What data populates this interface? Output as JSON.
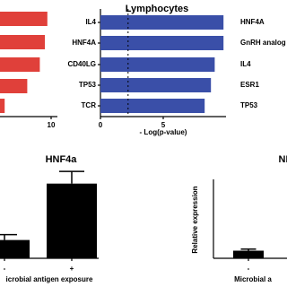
{
  "chart_data": [
    {
      "type": "hbar",
      "values": [
        9.7,
        9.5,
        9.1,
        8.1,
        6.3
      ],
      "color": "#e0403a",
      "xlim": [
        0,
        10.5
      ],
      "xticks": [
        10
      ]
    },
    {
      "type": "hbar",
      "title": "Lymphocytes",
      "x_label": "- Log(p-value)",
      "categories": [
        "IL4",
        "HNF4A",
        "CD40LG",
        "TP53",
        "TCR"
      ],
      "values": [
        9.8,
        9.8,
        9.1,
        8.8,
        8.3
      ],
      "color": "#3a4fa8",
      "xlim": [
        0,
        10
      ],
      "xticks": [
        0,
        5
      ],
      "threshold": 2.2
    },
    {
      "type": "labels",
      "categories": [
        "HNF4A",
        "GnRH analog",
        "IL4",
        "ESR1",
        "TP53"
      ]
    },
    {
      "type": "bar",
      "title": "HNF4a",
      "x_label": "icrobial antigen exposure",
      "categories": [
        "-",
        "+"
      ],
      "values": [
        1.2,
        4.9
      ],
      "errors": [
        0.35,
        0.8
      ],
      "color": "#000000",
      "ylim": [
        0,
        5.5
      ]
    },
    {
      "type": "bar",
      "title": "NI",
      "x_label": "Microbial a",
      "y_label": "Relative expression",
      "categories": [
        "-"
      ],
      "values": [
        0.5
      ],
      "errors": [
        0.1
      ],
      "color": "#000000",
      "ylim": [
        0,
        5.5
      ]
    }
  ]
}
